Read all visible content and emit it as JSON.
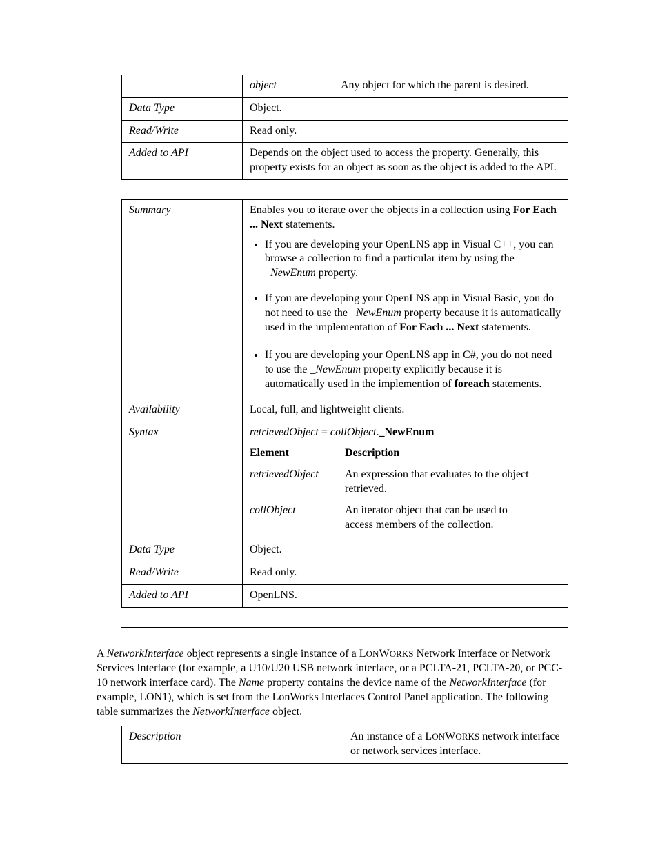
{
  "table1": {
    "rows": [
      {
        "label": "",
        "sub_elem": "object",
        "sub_desc": "Any object for which the parent is desired."
      },
      {
        "label": "Data Type",
        "value": "Object."
      },
      {
        "label": "Read/Write",
        "value": "Read only."
      },
      {
        "label": "Added to API",
        "value": "Depends on the object used to access the property. Generally, this property exists for an object as soon as the object is added to the API."
      }
    ]
  },
  "table2": {
    "summary": {
      "label": "Summary",
      "intro_pre": "Enables you to iterate over the objects in a collection using ",
      "intro_bold": "For Each ... Next",
      "intro_post": " statements.",
      "bullets": [
        {
          "parts": [
            {
              "t": "If you are developing your OpenLNS app in Visual C++, you can browse a collection to find a particular item by using the "
            },
            {
              "t": "_NewEnum",
              "style": "italic"
            },
            {
              "t": " property."
            }
          ]
        },
        {
          "parts": [
            {
              "t": "If you are developing your OpenLNS app in Visual Basic, you do not need to use the "
            },
            {
              "t": "_NewEnum",
              "style": "italic"
            },
            {
              "t": " property because it is automatically used in the implementation of "
            },
            {
              "t": "For Each ... Next",
              "style": "bold"
            },
            {
              "t": " statements."
            }
          ]
        },
        {
          "parts": [
            {
              "t": "If you are developing your OpenLNS app in C#, you do not need to use the "
            },
            {
              "t": "_NewEnum",
              "style": "italic"
            },
            {
              "t": " property explicitly because it is automatically used in the implemention of "
            },
            {
              "t": "foreach",
              "style": "bold"
            },
            {
              "t": " statements."
            }
          ]
        }
      ]
    },
    "availability": {
      "label": "Availability",
      "value": "Local, full, and lightweight clients."
    },
    "syntax": {
      "label": "Syntax",
      "expr": {
        "lhs": "retrievedObject",
        "eq": " = ",
        "rhs_it": "collObject",
        "dot": ".",
        "rhs_bold": "_NewEnum"
      },
      "headers": {
        "c1": "Element",
        "c2": "Description"
      },
      "elements": [
        {
          "name": "retrievedObject",
          "desc": "An expression that evaluates to the object retrieved."
        },
        {
          "name": "collObject",
          "desc": "An iterator object that can be used to access members of the collection."
        }
      ]
    },
    "datatype": {
      "label": "Data Type",
      "value": "Object."
    },
    "readwrite": {
      "label": "Read/Write",
      "value": "Read only."
    },
    "addedapi": {
      "label": "Added to API",
      "value": "OpenLNS."
    }
  },
  "body_para": {
    "segments": [
      {
        "t": "A "
      },
      {
        "t": "NetworkInterface",
        "style": "italic"
      },
      {
        "t": " object represents a single instance of a L"
      },
      {
        "t": "ON",
        "style": "smcaps"
      },
      {
        "t": "W"
      },
      {
        "t": "ORKS",
        "style": "smcaps"
      },
      {
        "t": " Network Interface or Network Services Interface (for example, a U10/U20 USB network interface, or a PCLTA-21, PCLTA-20, or PCC-10 network interface card).  The "
      },
      {
        "t": "Name",
        "style": "italic"
      },
      {
        "t": " property contains the device name of the "
      },
      {
        "t": "NetworkInterface",
        "style": "italic"
      },
      {
        "t": " (for example, LON1), which is set from the LonWorks Interfaces Control Panel application.  The following table summarizes the "
      },
      {
        "t": "NetworkInterface",
        "style": "italic"
      },
      {
        "t": " object."
      }
    ]
  },
  "table3": {
    "label": "Description",
    "value_segments": [
      {
        "t": "An instance of a L"
      },
      {
        "t": "ON",
        "style": "smcaps"
      },
      {
        "t": "W"
      },
      {
        "t": "ORKS",
        "style": "smcaps"
      },
      {
        "t": " network interface or network services interface."
      }
    ]
  }
}
